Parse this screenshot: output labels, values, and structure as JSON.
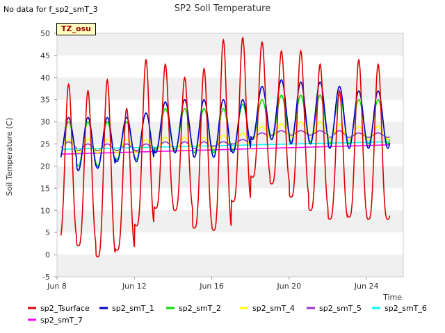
{
  "header": {
    "nodata_text": "No data for f_sp2_smT_3"
  },
  "badge": {
    "text": "TZ_osu"
  },
  "chart_data": {
    "type": "line",
    "title": "SP2 Soil Temperature",
    "xlabel": "Time",
    "ylabel": "Soil Temperature (C)",
    "xlim": [
      8,
      25.9
    ],
    "ylim": [
      -5,
      50
    ],
    "yticks": [
      -5,
      0,
      5,
      10,
      15,
      20,
      25,
      30,
      35,
      40,
      45,
      50
    ],
    "xticks": [
      {
        "label": "Jun 8",
        "value": 8
      },
      {
        "label": "Jun 12",
        "value": 12
      },
      {
        "label": "Jun 16",
        "value": 16
      },
      {
        "label": "Jun 20",
        "value": 20
      },
      {
        "label": "Jun 24",
        "value": 24
      }
    ],
    "grid_bands": true,
    "legend_position": "bottom",
    "series": [
      {
        "name": "sp2_Tsurface",
        "color": "#dd0000",
        "max": [
          38.5,
          37,
          39.5,
          33,
          44,
          43,
          40,
          42,
          48.5,
          49,
          48,
          46,
          46,
          43,
          37,
          44,
          43
        ],
        "min": [
          3.5,
          2,
          -0.5,
          1,
          6.5,
          10.5,
          10,
          6,
          5.5,
          12,
          17.5,
          16,
          13,
          10,
          8,
          8.5,
          8
        ]
      },
      {
        "name": "sp2_smT_1",
        "color": "#0000cc",
        "max": [
          31,
          31,
          31,
          31,
          32,
          34.5,
          35,
          35,
          35,
          35,
          38,
          39.5,
          39,
          39,
          38,
          37,
          37
        ],
        "min": [
          21,
          19,
          19.5,
          21,
          21,
          23,
          23,
          22,
          22,
          23,
          26,
          26,
          25,
          25,
          24,
          24,
          24
        ]
      },
      {
        "name": "sp2_smT_2",
        "color": "#00dd00",
        "max": [
          30,
          30,
          30,
          30,
          32,
          33,
          33,
          33,
          33,
          34,
          35,
          36,
          36,
          36,
          36,
          35,
          35
        ],
        "min": [
          21.5,
          20,
          20,
          21.5,
          21.5,
          23.5,
          23.5,
          23,
          23,
          23.5,
          26,
          26,
          25.5,
          25.5,
          25,
          25,
          25
        ]
      },
      {
        "name": "sp2_smT_4",
        "color": "#ffff00",
        "max": [
          26,
          26,
          26,
          26,
          26,
          26.5,
          26.5,
          26.5,
          27,
          27.5,
          29,
          29.5,
          30,
          30,
          29.5,
          29,
          29
        ],
        "min": [
          23.5,
          23,
          23,
          23,
          23,
          23.5,
          23.5,
          23.5,
          24,
          24,
          26,
          26.5,
          26.5,
          26.5,
          26,
          26,
          26
        ]
      },
      {
        "name": "sp2_smT_5",
        "color": "#9932cc",
        "max": [
          25.5,
          25,
          25,
          25,
          25,
          25.5,
          25.5,
          25.5,
          25.5,
          26,
          27.5,
          28,
          28,
          28,
          28,
          27.5,
          27.5
        ],
        "min": [
          24,
          23.5,
          23.5,
          23.5,
          23.5,
          24,
          24,
          24,
          24.5,
          25,
          26.5,
          27,
          27,
          27,
          26.5,
          26.5,
          26.5
        ]
      },
      {
        "name": "sp2_smT_6",
        "color": "#00ffff",
        "start": 23.8,
        "end": 25.5
      },
      {
        "name": "sp2_smT_7",
        "color": "#ff00ff",
        "start": 22.7,
        "end": 24.8
      }
    ],
    "days": [
      8,
      9,
      10,
      11,
      12,
      13,
      14,
      15,
      16,
      17,
      18,
      19,
      20,
      21,
      22,
      23,
      24
    ],
    "data_end": 25.2
  }
}
